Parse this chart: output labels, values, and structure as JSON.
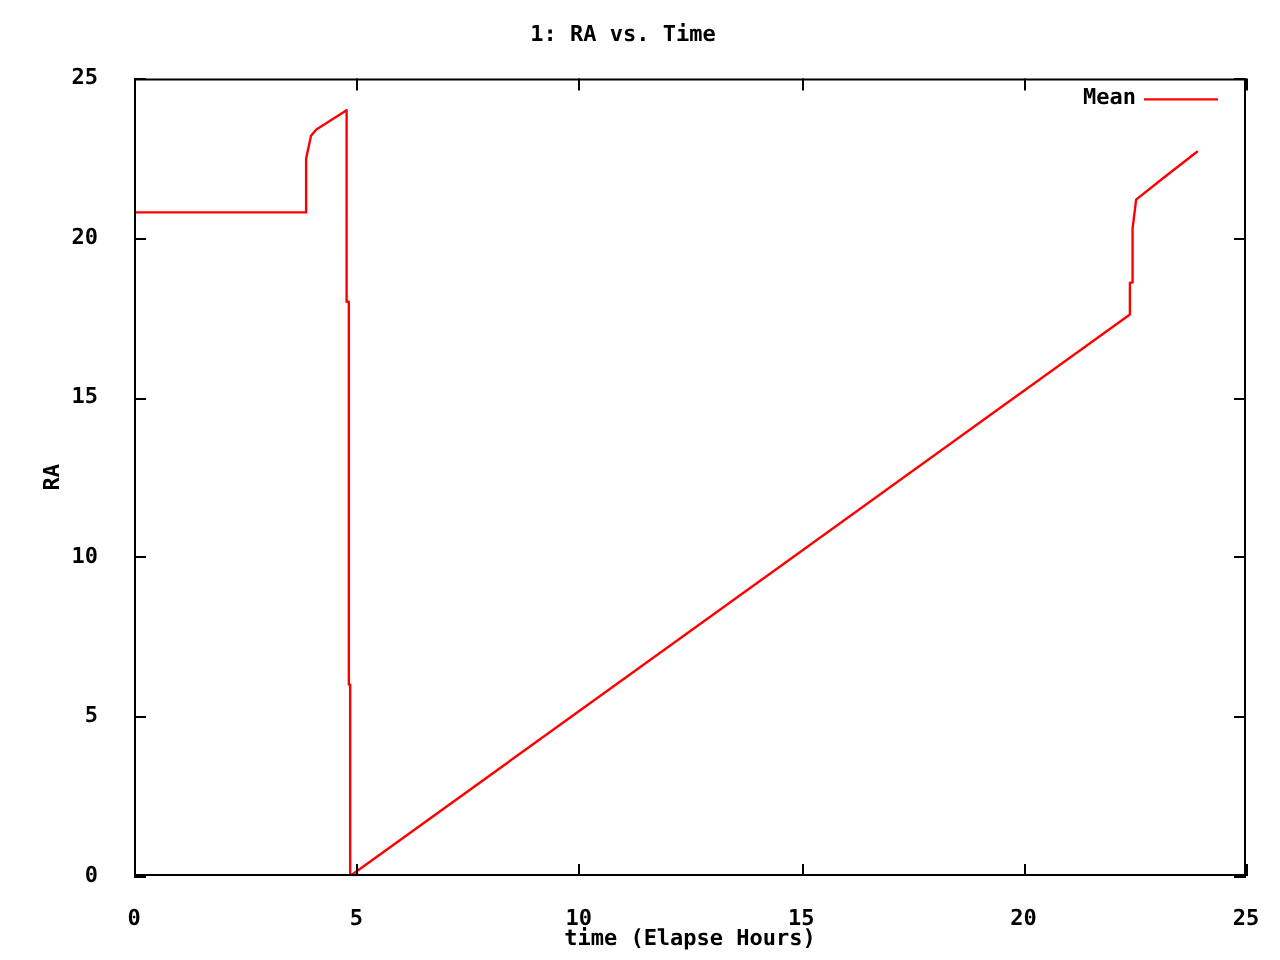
{
  "chart_data": {
    "type": "line",
    "title": "1: RA vs. Time",
    "xlabel": "time (Elapse Hours)",
    "ylabel": "RA",
    "x": [
      0,
      3.87,
      3.87,
      3.98,
      4.1,
      4.78,
      4.78,
      4.83,
      4.83,
      4.86,
      4.86,
      22.39,
      22.39,
      22.45,
      22.45,
      22.53,
      23.07,
      23.9
    ],
    "series": [
      {
        "name": "Mean",
        "color": "#ff0000",
        "values": [
          20.8,
          20.8,
          22.5,
          23.2,
          23.4,
          24.0,
          18.0,
          18.0,
          6.0,
          6.0,
          0,
          17.6,
          18.6,
          18.6,
          20.3,
          21.2,
          21.8,
          22.7
        ]
      }
    ],
    "xlim": [
      0,
      25
    ],
    "xticks": [
      0,
      5,
      10,
      15,
      20,
      25
    ],
    "ylim": [
      0,
      25
    ],
    "yticks": [
      0,
      5,
      10,
      15,
      20,
      25
    ],
    "legend": "top right"
  }
}
